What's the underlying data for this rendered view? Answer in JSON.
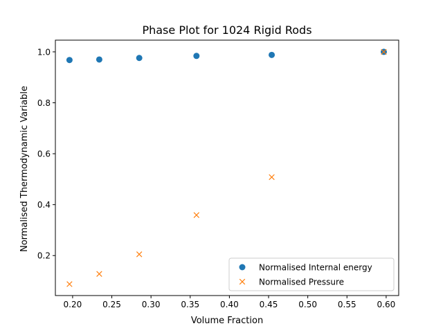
{
  "chart_data": {
    "type": "scatter",
    "title": "Phase Plot for 1024 Rigid Rods",
    "xlabel": "Volume Fraction",
    "ylabel": "Normalised Thermodynamic Variable",
    "xlim": [
      0.178,
      0.616
    ],
    "ylim": [
      0.043,
      1.046
    ],
    "xticks": [
      0.2,
      0.25,
      0.3,
      0.35,
      0.4,
      0.45,
      0.5,
      0.55,
      0.6
    ],
    "xtick_labels": [
      "0.20",
      "0.25",
      "0.30",
      "0.35",
      "0.40",
      "0.45",
      "0.50",
      "0.55",
      "0.60"
    ],
    "yticks": [
      0.2,
      0.4,
      0.6,
      0.8,
      1.0
    ],
    "ytick_labels": [
      "0.2",
      "0.4",
      "0.6",
      "0.8",
      "1.0"
    ],
    "grid": false,
    "legend_position": "lower-right",
    "series": [
      {
        "name": "Normalised Internal energy",
        "marker": "circle",
        "color": "#1f77b4",
        "x": [
          0.196,
          0.234,
          0.285,
          0.358,
          0.454,
          0.597
        ],
        "y": [
          0.968,
          0.97,
          0.976,
          0.984,
          0.988,
          1.0
        ]
      },
      {
        "name": "Normalised Pressure",
        "marker": "x",
        "color": "#ff7f0e",
        "x": [
          0.196,
          0.234,
          0.285,
          0.358,
          0.454,
          0.597
        ],
        "y": [
          0.088,
          0.128,
          0.205,
          0.359,
          0.508,
          1.0
        ]
      }
    ]
  }
}
